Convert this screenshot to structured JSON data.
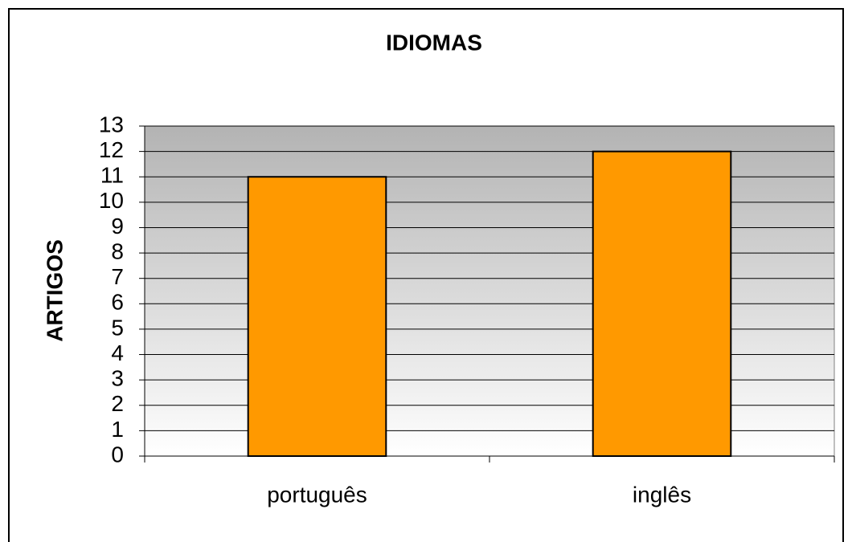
{
  "chart_data": {
    "type": "bar",
    "title": "IDIOMAS",
    "y_label": "ARTIGOS",
    "categories": [
      "português",
      "inglês"
    ],
    "values": [
      11,
      12
    ],
    "color": "#ff9900",
    "ylim": [
      0,
      13
    ],
    "yticks": [
      0,
      1,
      2,
      3,
      4,
      5,
      6,
      7,
      8,
      9,
      10,
      11,
      12,
      13
    ],
    "grid": true
  }
}
